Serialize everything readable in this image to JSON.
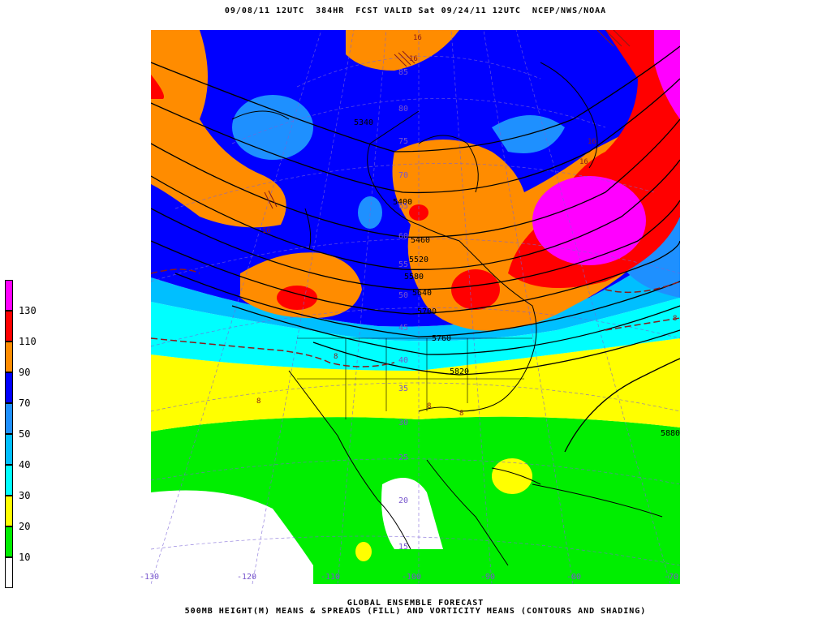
{
  "header": {
    "title": "09/08/11 12UTC  384HR  FCST VALID Sat 09/24/11 12UTC  NCEP/NWS/NOAA"
  },
  "legend": {
    "labels": [
      "130",
      "110",
      "90",
      "70",
      "50",
      "40",
      "30",
      "20",
      "10"
    ],
    "colors": [
      "#ff00ff",
      "#ff0000",
      "#ff8c00",
      "#0000ff",
      "#1e90ff",
      "#00bfff",
      "#00ffff",
      "#ffff00",
      "#00ee00",
      "#ffffff"
    ]
  },
  "map": {
    "contours": [
      "5400",
      "5460",
      "5520",
      "5580",
      "5640",
      "5700",
      "5760",
      "5820",
      "5880",
      "5340"
    ],
    "spread_labels": [
      "16",
      "16",
      "16",
      "16",
      "16",
      "8",
      "8",
      "8",
      "8",
      "8"
    ],
    "lat_labels": [
      "85",
      "80",
      "75",
      "70",
      "65",
      "60",
      "55",
      "50",
      "45",
      "40",
      "35",
      "30",
      "25",
      "20",
      "15"
    ],
    "lon_labels": [
      "-130",
      "-120",
      "-110",
      "-100",
      "-90",
      "-80",
      "-70"
    ]
  },
  "footer": {
    "line1": "GLOBAL ENSEMBLE FORECAST",
    "line2": "500MB HEIGHT(M) MEANS & SPREADS (FILL) AND VORTICITY MEANS (CONTOURS AND SHADING)"
  }
}
